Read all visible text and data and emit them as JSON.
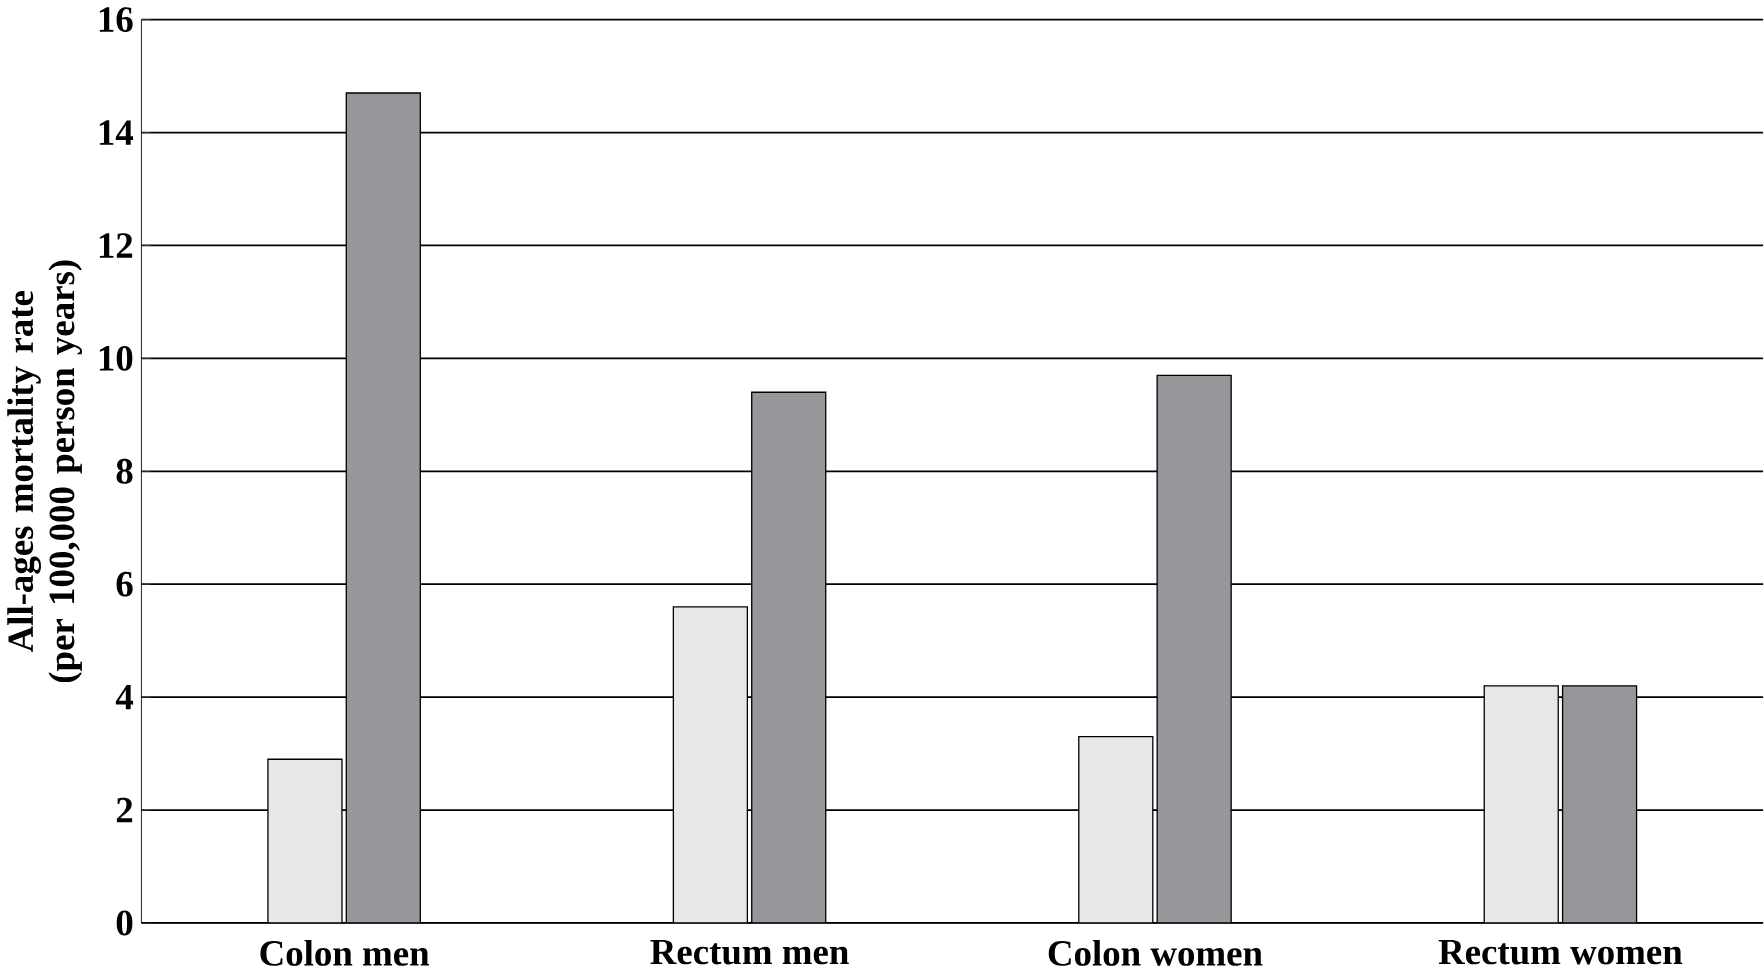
{
  "chart_data": {
    "type": "bar",
    "ylabel": "All-ages mortality rate\n(per 100,000 person years)",
    "categories": [
      "Colon men",
      "Rectum men",
      "Colon women",
      "Rectum women"
    ],
    "series": [
      {
        "color": "#e6e7e9",
        "values": [
          2.9,
          5.6,
          3.3,
          4.2
        ]
      },
      {
        "color": "#96979b",
        "values": [
          14.7,
          9.4,
          9.7,
          4.2
        ]
      }
    ],
    "ylim": [
      0,
      16
    ],
    "yticks": [
      0,
      2,
      4,
      6,
      8,
      10,
      12,
      14,
      16
    ],
    "grid": "y"
  }
}
